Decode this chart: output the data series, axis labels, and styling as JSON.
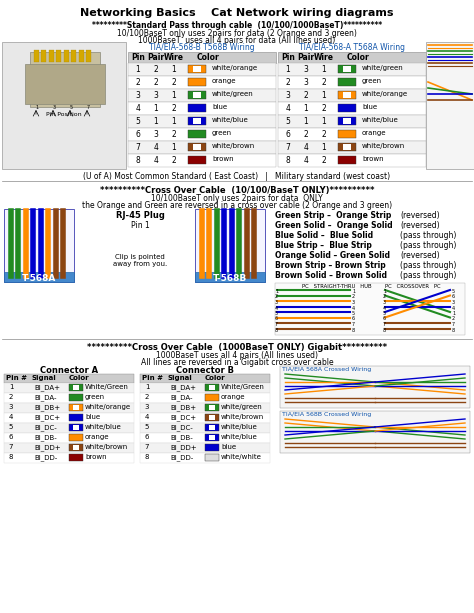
{
  "title": "Networking Basics    Cat Network wiring diagrams",
  "bg_color": "#ffffff",
  "s1_title": "*********Standard Pass through cable  (10/100/1000BaseT)**********",
  "s1_sub1": "10/100BaseT only uses 2pairs for data (2 Orange and 3 green)",
  "s1_sub2": "1000BaseT  uses all 4 pairs for data (All lines used)",
  "t568b_label": "TIA/EIA-568-B T568B Wiring",
  "t568a_label": "TIA/EIA-568-A T568A Wiring",
  "pin_hdr": [
    "Pin",
    "Pair",
    "Wire",
    "Color"
  ],
  "t568b_rows": [
    [
      1,
      2,
      1,
      "white/orange",
      "#FF8C00",
      true
    ],
    [
      2,
      2,
      2,
      "orange",
      "#FF8C00",
      false
    ],
    [
      3,
      3,
      1,
      "white/green",
      "#228B22",
      true
    ],
    [
      4,
      1,
      2,
      "blue",
      "#0000CD",
      false
    ],
    [
      5,
      1,
      1,
      "white/blue",
      "#0000CD",
      true
    ],
    [
      6,
      3,
      2,
      "green",
      "#228B22",
      false
    ],
    [
      7,
      4,
      1,
      "white/brown",
      "#8B4513",
      true
    ],
    [
      8,
      4,
      2,
      "brown",
      "#8B0000",
      false
    ]
  ],
  "t568a_rows": [
    [
      1,
      3,
      1,
      "white/green",
      "#228B22",
      true
    ],
    [
      2,
      3,
      2,
      "green",
      "#228B22",
      false
    ],
    [
      3,
      2,
      1,
      "white/orange",
      "#FF8C00",
      true
    ],
    [
      4,
      1,
      2,
      "blue",
      "#0000CD",
      false
    ],
    [
      5,
      1,
      1,
      "white/blue",
      "#0000CD",
      true
    ],
    [
      6,
      2,
      2,
      "orange",
      "#FF8C00",
      false
    ],
    [
      7,
      4,
      1,
      "white/brown",
      "#8B4513",
      true
    ],
    [
      8,
      4,
      2,
      "brown",
      "#8B0000",
      false
    ]
  ],
  "footer1": "(U of A) Most Common Standard ( East Coast)   |   Military standard (west coast)",
  "s2_title": "**********Cross Over Cable  (10/100/BaseT ONLY)**********",
  "s2_sub1": "10/100BaseT only uses 2pairs for data  ONLY",
  "s2_sub2": "the Orange and Green are reversed in a cross over cable (2 Orange and 3 green)",
  "co_notes": [
    [
      "Green Strip –  Orange Strip",
      "(reversed)"
    ],
    [
      "Green Solid –  Orange Solid",
      "(reversed)"
    ],
    [
      "Blue Solid –  Blue Solid",
      "(pass through)"
    ],
    [
      "Blue Strip –  Blue Strip",
      "(pass through)"
    ],
    [
      "Orange Solid – Green Solid",
      "(reversed)"
    ],
    [
      "Brown Strip – Brown Strip",
      "(pass through)"
    ],
    [
      "Brown Solid – Brown Solid",
      "(pass through)"
    ]
  ],
  "s3_title": "**********Cross Over Cable  (1000BaseT ONLY) Gigabit**********",
  "s3_sub1": "1000BaseT uses all 4 pairs (All lines used)",
  "s3_sub2": "All lines are reversed in a Gigabit cross over cable",
  "connA_title": "Connector A",
  "connB_title": "Connector B",
  "conn_hdr": [
    "Pin #",
    "Signal",
    "Color"
  ],
  "connA_rows": [
    [
      1,
      "BI_DA+",
      "White/Green",
      "#228B22",
      true
    ],
    [
      2,
      "BI_DA-",
      "green",
      "#228B22",
      false
    ],
    [
      3,
      "BI_DB+",
      "white/orange",
      "#FF8C00",
      true
    ],
    [
      4,
      "BI_DC+",
      "blue",
      "#0000CD",
      false
    ],
    [
      5,
      "BI_DC-",
      "white/blue",
      "#0000CD",
      true
    ],
    [
      6,
      "BI_DB-",
      "orange",
      "#FF8C00",
      false
    ],
    [
      7,
      "BI_DD+",
      "white/brown",
      "#8B4513",
      true
    ],
    [
      8,
      "BI_DD-",
      "brown",
      "#8B0000",
      false
    ]
  ],
  "connB_rows": [
    [
      1,
      "BI_DA+",
      "White/Green",
      "#228B22",
      true
    ],
    [
      2,
      "BI_DA-",
      "orange",
      "#FF8C00",
      false
    ],
    [
      3,
      "BI_DB+",
      "white/green",
      "#228B22",
      true
    ],
    [
      4,
      "BI_DC+",
      "white/brown",
      "#8B4513",
      true
    ],
    [
      5,
      "BI_DC-",
      "white/blue",
      "#0000CD",
      true
    ],
    [
      6,
      "BI_DB-",
      "white/blue",
      "#0000CD",
      true
    ],
    [
      7,
      "BI_DD+",
      "blue",
      "#0000CD",
      false
    ],
    [
      8,
      "BI_DD-",
      "white/white",
      "#DDDDDD",
      false
    ]
  ],
  "straight_colors": [
    "#228B22",
    "#228B22",
    "#FF8C00",
    "#0000CD",
    "#0000CD",
    "#FF8C00",
    "#8B4513",
    "#8B4513"
  ],
  "t568a_plug_colors": [
    "#228B22",
    "#228B22",
    "#FF8C00",
    "#0000CD",
    "#0000CD",
    "#FF8C00",
    "#8B4513",
    "#8B4513"
  ],
  "t568b_plug_colors": [
    "#FF8C00",
    "#FF8C00",
    "#228B22",
    "#0000CD",
    "#0000CD",
    "#228B22",
    "#8B4513",
    "#8B4513"
  ]
}
